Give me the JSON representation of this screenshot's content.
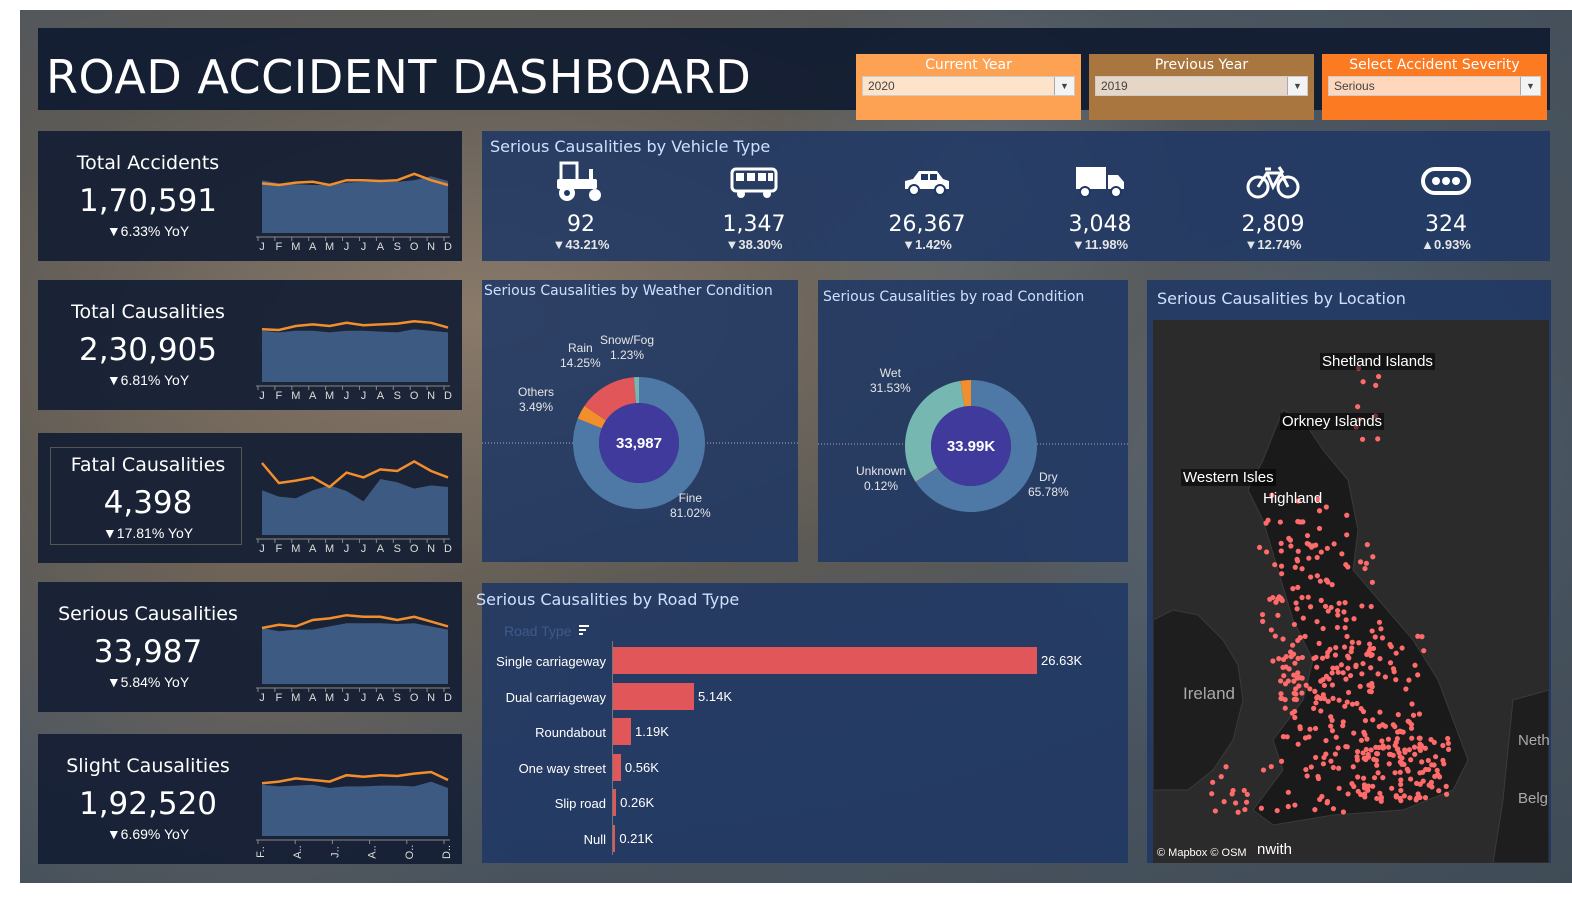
{
  "header": {
    "title": "ROAD ACCIDENT DASHBOARD",
    "filters": [
      {
        "label": "Current Year",
        "value": "2020",
        "color": "#fca252"
      },
      {
        "label": "Previous Year",
        "value": "2019",
        "color": "#a8763e"
      },
      {
        "label": "Select Accident Severity",
        "value": "Serious",
        "color": "#fb7a22"
      }
    ]
  },
  "months_full": [
    "J",
    "F",
    "M",
    "A",
    "M",
    "J",
    "J",
    "A",
    "S",
    "O",
    "N",
    "D"
  ],
  "months_short": [
    "F..",
    "A..",
    "J..",
    "A..",
    "O..",
    "D.."
  ],
  "kpis": [
    {
      "title": "Total Accidents",
      "value": "1,70,591",
      "yoy": "▼6.33% YoY",
      "cy": [
        0.62,
        0.6,
        0.63,
        0.64,
        0.6,
        0.66,
        0.66,
        0.65,
        0.66,
        0.74,
        0.66,
        0.6
      ],
      "py": [
        0.66,
        0.62,
        0.61,
        0.6,
        0.6,
        0.63,
        0.64,
        0.64,
        0.64,
        0.66,
        0.71,
        0.65
      ]
    },
    {
      "title": "Total Causalities",
      "value": "2,30,905",
      "yoy": "▼6.81% YoY",
      "cy": [
        0.66,
        0.65,
        0.7,
        0.72,
        0.7,
        0.74,
        0.71,
        0.72,
        0.73,
        0.76,
        0.74,
        0.68
      ],
      "py": [
        0.64,
        0.62,
        0.64,
        0.64,
        0.62,
        0.64,
        0.64,
        0.63,
        0.62,
        0.66,
        0.64,
        0.62
      ]
    },
    {
      "title": "Fatal Causalities",
      "value": "4,398",
      "yoy": "▼17.81% YoY",
      "cy": [
        0.9,
        0.65,
        0.68,
        0.72,
        0.6,
        0.78,
        0.72,
        0.82,
        0.8,
        0.92,
        0.8,
        0.72
      ],
      "py": [
        0.56,
        0.48,
        0.46,
        0.56,
        0.62,
        0.55,
        0.42,
        0.7,
        0.66,
        0.58,
        0.62,
        0.6
      ]
    },
    {
      "title": "Serious Causalities",
      "value": "33,987",
      "yoy": "▼5.84% YoY",
      "cy": [
        0.7,
        0.74,
        0.72,
        0.8,
        0.82,
        0.86,
        0.84,
        0.84,
        0.8,
        0.84,
        0.78,
        0.72
      ],
      "py": [
        0.7,
        0.66,
        0.68,
        0.68,
        0.72,
        0.76,
        0.76,
        0.76,
        0.75,
        0.76,
        0.72,
        0.68
      ]
    },
    {
      "title": "Slight Causalities",
      "value": "1,92,520",
      "yoy": "▼6.69% YoY",
      "cy": [
        0.66,
        0.68,
        0.72,
        0.7,
        0.68,
        0.76,
        0.74,
        0.76,
        0.75,
        0.78,
        0.8,
        0.7
      ],
      "py": [
        0.64,
        0.62,
        0.63,
        0.64,
        0.6,
        0.62,
        0.62,
        0.63,
        0.63,
        0.62,
        0.68,
        0.6
      ]
    }
  ],
  "vehicle": {
    "title": "Serious Causalities by Vehicle Type",
    "items": [
      {
        "icon": "tractor-icon",
        "value": "92",
        "change": "▼43.21%"
      },
      {
        "icon": "bus-icon",
        "value": "1,347",
        "change": "▼38.30%"
      },
      {
        "icon": "car-icon",
        "value": "26,367",
        "change": "▼1.42%"
      },
      {
        "icon": "truck-icon",
        "value": "3,048",
        "change": "▼11.98%"
      },
      {
        "icon": "bicycle-icon",
        "value": "2,809",
        "change": "▼12.74%"
      },
      {
        "icon": "other-icon",
        "value": "324",
        "change": "▲0.93%"
      }
    ]
  },
  "weather": {
    "title": "Serious Causalities by Weather Condition",
    "center": "33,987",
    "slices": [
      {
        "name": "Fine",
        "pct": "81.02%",
        "v": 81.02,
        "color": "#4e79a7"
      },
      {
        "name": "Others",
        "pct": "3.49%",
        "v": 3.49,
        "color": "#f28e2b"
      },
      {
        "name": "Rain",
        "pct": "14.25%",
        "v": 14.25,
        "color": "#e15759"
      },
      {
        "name": "Snow/Fog",
        "pct": "1.23%",
        "v": 1.23,
        "color": "#76b7b2"
      }
    ]
  },
  "road_condition": {
    "title": "Serious Causalities by road Condition",
    "center": "33.99K",
    "slices": [
      {
        "name": "Dry",
        "pct": "65.78%",
        "v": 65.78,
        "color": "#4e79a7"
      },
      {
        "name": "Unknown",
        "pct": "0.12%",
        "v": 0.12,
        "color": "#e15759"
      },
      {
        "name": "Wet",
        "pct": "31.53%",
        "v": 31.53,
        "color": "#76b7b2"
      },
      {
        "name": "",
        "pct": "",
        "v": 2.57,
        "color": "#f28e2b"
      }
    ]
  },
  "road_type": {
    "title": "Serious Causalities by Road Type",
    "axis_label": "Road Type",
    "bars": [
      {
        "cat": "Single carriageway",
        "v": 26.63,
        "label": "26.63K"
      },
      {
        "cat": "Dual carriageway",
        "v": 5.14,
        "label": "5.14K"
      },
      {
        "cat": "Roundabout",
        "v": 1.19,
        "label": "1.19K"
      },
      {
        "cat": "One way street",
        "v": 0.56,
        "label": "0.56K"
      },
      {
        "cat": "Slip road",
        "v": 0.26,
        "label": "0.26K"
      },
      {
        "cat": "Null",
        "v": 0.21,
        "label": "0.21K"
      }
    ],
    "bar_color": "#e15759"
  },
  "location": {
    "title": "Serious Causalities by Location",
    "attribution": "© Mapbox © OSM",
    "labels": [
      "Shetland Islands",
      "Orkney Islands",
      "Western Isles",
      "Highland",
      "Ireland",
      "Neth",
      "Belg",
      "nwith"
    ]
  },
  "colors": {
    "cy": "#f28e2b",
    "area": "#3d5a82"
  }
}
